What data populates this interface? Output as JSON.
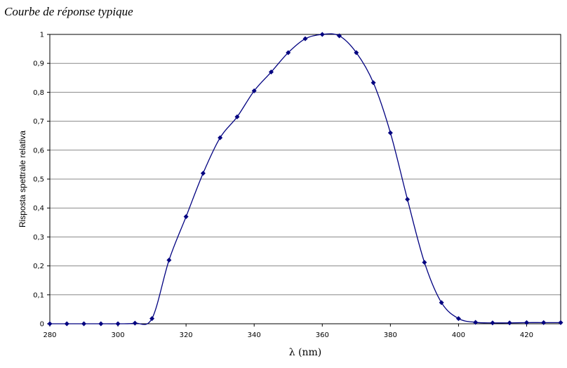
{
  "chart_data": {
    "type": "line",
    "title": "Courbe de réponse typique",
    "xlabel": "λ (nm)",
    "ylabel": "Risposta spettrale relativa",
    "x": [
      280,
      285,
      290,
      295,
      300,
      305,
      310,
      315,
      320,
      325,
      330,
      335,
      340,
      345,
      350,
      355,
      360,
      365,
      370,
      375,
      380,
      385,
      390,
      395,
      400,
      405,
      410,
      415,
      420,
      425,
      430
    ],
    "series": [
      {
        "color": "#000080",
        "values": [
          0,
          0,
          0,
          0,
          0,
          0.002,
          0.018,
          0.22,
          0.37,
          0.52,
          0.643,
          0.715,
          0.805,
          0.87,
          0.937,
          0.985,
          1.0,
          0.995,
          0.937,
          0.833,
          0.66,
          0.43,
          0.212,
          0.073,
          0.018,
          0.005,
          0.003,
          0.003,
          0.004,
          0.004,
          0.004
        ]
      }
    ],
    "xlim": [
      280,
      430
    ],
    "xticks": [
      280,
      300,
      320,
      340,
      360,
      380,
      400,
      420
    ],
    "ylim": [
      0,
      1
    ],
    "yticks": [
      0,
      {
        "value": 0.1,
        "label": "0,1"
      },
      {
        "value": 0.2,
        "label": "0,2"
      },
      {
        "value": 0.3,
        "label": "0,3"
      },
      {
        "value": 0.4,
        "label": "0,4"
      },
      {
        "value": 0.5,
        "label": "0,5"
      },
      {
        "value": 0.6,
        "label": "0,6"
      },
      {
        "value": 0.7,
        "label": "0,7"
      },
      {
        "value": 0.8,
        "label": "0,8"
      },
      {
        "value": 0.9,
        "label": "0,9"
      },
      1
    ],
    "grid": true
  }
}
